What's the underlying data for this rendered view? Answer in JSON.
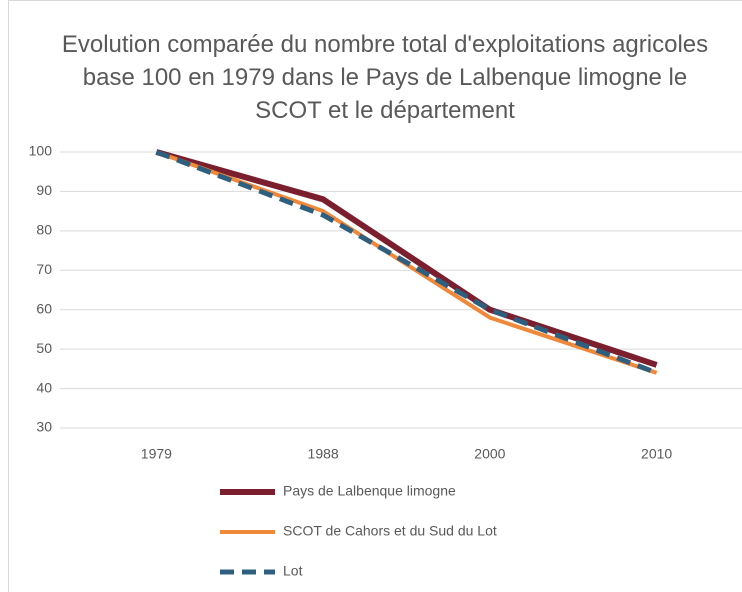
{
  "chart_data": {
    "type": "line",
    "title": "Evolution comparée du nombre total d'exploitations agricoles base 100 en 1979 dans le Pays de Lalbenque limogne le SCOT et le département",
    "categories": [
      "1979",
      "1988",
      "2000",
      "2010"
    ],
    "series": [
      {
        "name": "Pays de Lalbenque limogne",
        "color": "#7b1f2e",
        "values": [
          100,
          88,
          60,
          46
        ]
      },
      {
        "name": "SCOT de Cahors et du Sud du Lot",
        "color": "#f0883a",
        "values": [
          100,
          85,
          58,
          44
        ]
      },
      {
        "name": "Lot",
        "color": "#2e5f7f",
        "dashed": true,
        "values": [
          100,
          84,
          60,
          44
        ]
      }
    ],
    "ylim": [
      30,
      100
    ],
    "yticks": [
      30,
      40,
      50,
      60,
      70,
      80,
      90,
      100
    ],
    "grid": true,
    "legend": "bottom"
  }
}
